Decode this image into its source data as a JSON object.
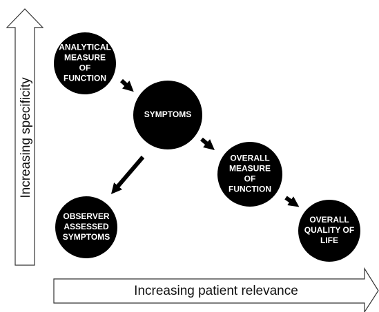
{
  "axes": {
    "vertical": "Increasing specificity",
    "horizontal": "Increasing patient relevance"
  },
  "nodes": [
    {
      "lines": [
        "ANALYTICAL",
        "MEASURE",
        "OF",
        "FUNCTION"
      ]
    },
    {
      "lines": [
        "SYMPTOMS"
      ]
    },
    {
      "lines": [
        "OVERALL",
        "MEASURE",
        "OF",
        "FUNCTION"
      ]
    },
    {
      "lines": [
        "OBSERVER",
        "ASSESSED",
        "SYMPTOMS"
      ]
    },
    {
      "lines": [
        "OVERALL",
        "QUALITY OF",
        "LIFE"
      ]
    }
  ]
}
